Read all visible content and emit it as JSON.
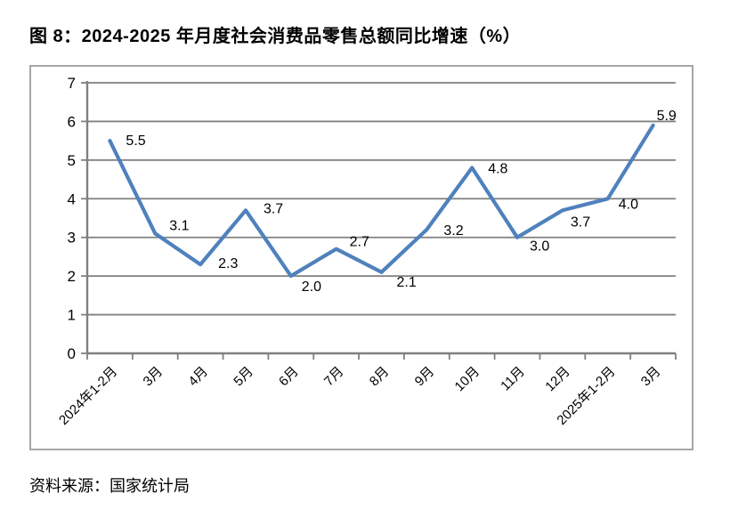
{
  "title": "图 8：2024-2025 年月度社会消费品零售总额同比增速（%）",
  "source": "资料来源：国家统计局",
  "colors": {
    "line": "#4f81bd",
    "grid": "#808080",
    "axis": "#808080",
    "frame_border": "#a6a6a6",
    "text": "#000000",
    "background": "#ffffff"
  },
  "chart_data": {
    "type": "line",
    "title": "",
    "xlabel": "",
    "ylabel": "",
    "categories": [
      "2024年1-2月",
      "3月",
      "4月",
      "5月",
      "6月",
      "7月",
      "8月",
      "9月",
      "10月",
      "11月",
      "12月",
      "2025年1-2月",
      "3月"
    ],
    "values": [
      5.5,
      3.1,
      2.3,
      3.7,
      2.0,
      2.7,
      2.1,
      3.2,
      4.8,
      3.0,
      3.7,
      4.0,
      5.9
    ],
    "data_labels": [
      "5.5",
      "3.1",
      "2.3",
      "3.7",
      "2.0",
      "2.7",
      "2.1",
      "3.2",
      "4.8",
      "3.0",
      "3.7",
      "4.0",
      "5.9"
    ],
    "ylim": [
      0,
      7
    ],
    "ytick_interval": 1,
    "yticks": [
      "0",
      "1",
      "2",
      "3",
      "4",
      "5",
      "6",
      "7"
    ],
    "grid": true,
    "legend": "none",
    "series_name": "社会消费品零售总额同比增速",
    "x_label_rotation_deg": 45
  }
}
